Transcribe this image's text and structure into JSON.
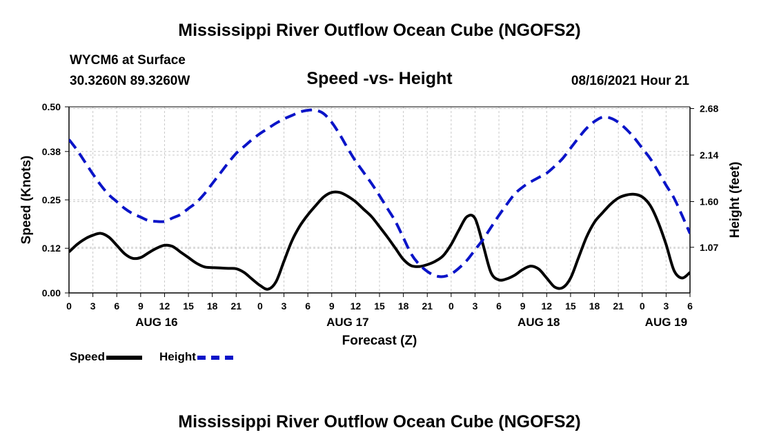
{
  "page": {
    "title_top": "Mississippi River Outflow Ocean Cube (NGOFS2)",
    "title_bottom": "Mississippi River Outflow Ocean Cube (NGOFS2)",
    "station": "WYCM6 at Surface",
    "coords": "30.3260N  89.3260W",
    "subtitle": "Speed -vs- Height",
    "datetime": "08/16/2021 Hour 21"
  },
  "legend": {
    "speed_label": "Speed",
    "height_label": "Height"
  },
  "colors": {
    "speed": "#000000",
    "height": "#0a14c8",
    "grid": "#c8c8c8"
  },
  "chart_data": {
    "type": "line",
    "title": "Speed -vs- Height",
    "xlabel": "Forecast (Z)",
    "ylabel": "Speed (Knots)",
    "ylabel_right": "Height (feet)",
    "x_unit": "hours since 08/16 00Z",
    "xlim": [
      0,
      78
    ],
    "ylim": [
      0,
      0.5
    ],
    "ylim_right": [
      0.54,
      2.7
    ],
    "yticks": [
      0.0,
      0.12,
      0.25,
      0.38,
      0.5
    ],
    "ytick_labels": [
      "0.00",
      "0.12",
      "0.25",
      "0.38",
      "0.50"
    ],
    "yticks_right": [
      1.07,
      1.6,
      2.14,
      2.68
    ],
    "ytick_labels_right": [
      "1.07",
      "1.60",
      "2.14",
      "2.68"
    ],
    "xticks": [
      0,
      3,
      6,
      9,
      12,
      15,
      18,
      21,
      24,
      27,
      30,
      33,
      36,
      39,
      42,
      45,
      48,
      51,
      54,
      57,
      60,
      63,
      66,
      69,
      72,
      75,
      78
    ],
    "xtick_labels": [
      "0",
      "3",
      "6",
      "9",
      "12",
      "15",
      "18",
      "21",
      "0",
      "3",
      "6",
      "9",
      "12",
      "15",
      "18",
      "21",
      "0",
      "3",
      "6",
      "9",
      "12",
      "15",
      "18",
      "21",
      "0",
      "3",
      "6"
    ],
    "date_labels": [
      {
        "x": 11,
        "label": "AUG 16"
      },
      {
        "x": 35,
        "label": "AUG 17"
      },
      {
        "x": 59,
        "label": "AUG 18"
      },
      {
        "x": 75,
        "label": "AUG 19"
      }
    ],
    "grid": true,
    "series": [
      {
        "name": "Speed",
        "axis": "left",
        "style": "solid",
        "x": [
          0,
          1,
          2,
          3,
          4,
          5,
          6,
          7,
          8,
          9,
          10,
          11,
          12,
          13,
          14,
          15,
          16,
          17,
          18,
          19,
          20,
          21,
          22,
          23,
          24,
          25,
          26,
          27,
          28,
          29,
          30,
          31,
          32,
          33,
          34,
          35,
          36,
          37,
          38,
          39,
          40,
          41,
          42,
          43,
          44,
          45,
          46,
          47,
          48,
          49,
          50,
          51,
          52,
          53,
          54,
          55,
          56,
          57,
          58,
          59,
          60,
          61,
          62,
          63,
          64,
          65,
          66,
          67,
          68,
          69,
          70,
          71,
          72,
          73,
          74,
          75,
          76,
          77,
          78
        ],
        "values": [
          0.11,
          0.13,
          0.145,
          0.155,
          0.16,
          0.15,
          0.128,
          0.105,
          0.093,
          0.095,
          0.108,
          0.12,
          0.128,
          0.125,
          0.11,
          0.095,
          0.08,
          0.07,
          0.068,
          0.067,
          0.066,
          0.065,
          0.055,
          0.037,
          0.02,
          0.01,
          0.03,
          0.085,
          0.14,
          0.18,
          0.21,
          0.235,
          0.258,
          0.27,
          0.27,
          0.26,
          0.245,
          0.225,
          0.205,
          0.178,
          0.15,
          0.12,
          0.09,
          0.073,
          0.071,
          0.076,
          0.085,
          0.1,
          0.13,
          0.17,
          0.205,
          0.2,
          0.13,
          0.055,
          0.035,
          0.038,
          0.048,
          0.063,
          0.072,
          0.064,
          0.04,
          0.016,
          0.014,
          0.04,
          0.095,
          0.15,
          0.19,
          0.215,
          0.238,
          0.255,
          0.263,
          0.265,
          0.258,
          0.235,
          0.19,
          0.13,
          0.06,
          0.04,
          0.055
        ]
      },
      {
        "name": "Height",
        "axis": "right",
        "style": "dashed",
        "x": [
          0,
          1,
          2,
          3,
          4,
          5,
          6,
          7,
          8,
          9,
          10,
          11,
          12,
          13,
          14,
          15,
          16,
          17,
          18,
          19,
          20,
          21,
          22,
          23,
          24,
          25,
          26,
          27,
          28,
          29,
          30,
          31,
          32,
          33,
          34,
          35,
          36,
          37,
          38,
          39,
          40,
          41,
          42,
          43,
          44,
          45,
          46,
          47,
          48,
          49,
          50,
          51,
          52,
          53,
          54,
          55,
          56,
          57,
          58,
          59,
          60,
          61,
          62,
          63,
          64,
          65,
          66,
          67,
          68,
          69,
          70,
          71,
          72,
          73,
          74,
          75,
          76,
          77,
          78
        ],
        "values": [
          2.32,
          2.2,
          2.06,
          1.92,
          1.79,
          1.68,
          1.6,
          1.52,
          1.46,
          1.42,
          1.38,
          1.37,
          1.37,
          1.41,
          1.45,
          1.52,
          1.59,
          1.69,
          1.81,
          1.93,
          2.05,
          2.16,
          2.24,
          2.32,
          2.39,
          2.45,
          2.51,
          2.56,
          2.6,
          2.64,
          2.66,
          2.66,
          2.62,
          2.52,
          2.38,
          2.22,
          2.07,
          1.94,
          1.81,
          1.67,
          1.52,
          1.37,
          1.18,
          0.99,
          0.87,
          0.79,
          0.74,
          0.73,
          0.76,
          0.83,
          0.92,
          1.04,
          1.16,
          1.3,
          1.44,
          1.57,
          1.69,
          1.77,
          1.83,
          1.88,
          1.93,
          2.01,
          2.1,
          2.22,
          2.34,
          2.45,
          2.53,
          2.58,
          2.57,
          2.52,
          2.44,
          2.34,
          2.22,
          2.1,
          1.95,
          1.79,
          1.64,
          1.44,
          1.23
        ]
      }
    ]
  }
}
